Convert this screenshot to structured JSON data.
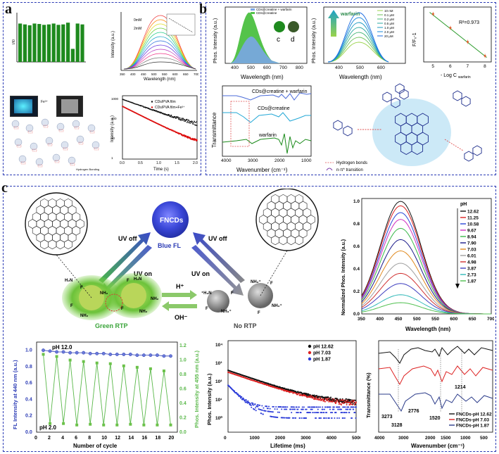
{
  "panels": {
    "a": "a",
    "b": "b",
    "c": "c"
  },
  "a": {
    "inset_fe": "Fe³⁺",
    "hbond": "Hydrogen Bonding",
    "spectra": {
      "ylabel": "Intensity (a.u.)",
      "xlabel": "Wavelength (nm)",
      "legend_top": "0mM",
      "legend_bot": "2mM",
      "xticks": [
        "350",
        "400",
        "450",
        "500",
        "550",
        "600",
        "650",
        "700"
      ]
    },
    "decay": {
      "ylabel": "Intensity (a.u.)",
      "xlabel": "Time (s)",
      "legend1": "CDs/PVA film",
      "legend2": "CDs/PVA film+Fe³⁺",
      "xticks": [
        "0.0",
        "0.5",
        "1.0",
        "1.5",
        "2.0"
      ],
      "yticks": [
        "1000",
        "100",
        "10",
        "1"
      ]
    }
  },
  "b": {
    "spec1": {
      "ylabel": "Phos. Intensity (a.u.)",
      "xlabel": "Wavelength (nm)",
      "leg1": "CDs@creatine + warfarin",
      "leg2": "CDs@creatine",
      "xticks": [
        "400",
        "500",
        "600",
        "700",
        "800"
      ],
      "c": "c",
      "d": "d"
    },
    "spec2": {
      "ylabel": "Phos. Intensity (a.u.)",
      "xlabel": "Wavelength (nm)",
      "arrow": "warfarin",
      "legend": [
        "10  nM",
        "0.1 μM",
        "0.2 μM",
        "0.5 μM",
        "1.0 μM",
        "2.0 μM",
        "20  μM"
      ],
      "xticks": [
        "400",
        "500",
        "600"
      ]
    },
    "fit": {
      "ylabel": "F/F₀-1",
      "xlabel": "- Log C",
      "xsub": "warfarin",
      "r2": "R²=0.973",
      "xticks": [
        "5",
        "6",
        "7",
        "8"
      ]
    },
    "ir": {
      "ylabel": "Transmittance",
      "xlabel": "Wavenumber (cm⁻¹)",
      "l1": "CDs@creatine + warfarin",
      "l2": "CDs@creatine",
      "l3": "warfarin",
      "xticks": [
        "4000",
        "3000",
        "2000",
        "1000"
      ]
    },
    "mol": {
      "hbonds": "Hydrogen bonds",
      "transition": "n-π* transition"
    }
  },
  "c": {
    "fncds": "FNCDs",
    "blue_fl": "Blue FL",
    "uv_off": "UV off",
    "uv_on": "UV on",
    "green_rtp": "Green RTP",
    "no_rtp": "No RTP",
    "h": "H⁺",
    "oh": "OH⁻",
    "norm": {
      "ylabel": "Normalized Phos. Intensity (a.u.)",
      "xlabel": "Wavelength (nm)",
      "ph": "pH",
      "legend": [
        "12.62",
        "11.25",
        "10.58",
        "9.67",
        "8.94",
        "7.90",
        "7.03",
        "6.01",
        "4.98",
        "3.87",
        "2.73",
        "1.87"
      ],
      "xticks": [
        "350",
        "400",
        "450",
        "500",
        "550",
        "600",
        "650",
        "700"
      ],
      "yticks": [
        "0.0",
        "0.2",
        "0.4",
        "0.6",
        "0.8",
        "1.0"
      ]
    },
    "cycle": {
      "ylabel_left": "FL Intensity at 440 nm (a.u.)",
      "ylabel_right": "Phos. Intensity at 455 nm (a.u.)",
      "xlabel": "Number of cycle",
      "ph_hi": "pH 12.0",
      "ph_lo": "pH 2.0",
      "xticks": [
        "0",
        "2",
        "4",
        "6",
        "8",
        "10",
        "12",
        "14",
        "16",
        "18",
        "20"
      ],
      "yticks": [
        "0.0",
        "0.2",
        "0.4",
        "0.6",
        "0.8",
        "1.0"
      ],
      "yticks_r": [
        "0.0",
        "0.2",
        "0.4",
        "0.6",
        "0.8",
        "1.0",
        "1.2"
      ]
    },
    "life": {
      "ylabel": "Phos. Intensity (a.u.)",
      "xlabel": "Lifetime (ms)",
      "legend": [
        "pH 12.62",
        "pH 7.03",
        "pH 1.87"
      ],
      "xticks": [
        "0",
        "1000",
        "2000",
        "3000",
        "4000",
        "5000"
      ],
      "yticks": [
        "10⁴",
        "10³",
        "10²",
        "10¹",
        "10⁰"
      ]
    },
    "ftir": {
      "ylabel": "Transmittance (%)",
      "xlabel": "Wavenumber (cm⁻¹)",
      "legend": [
        "FNCDs-pH 12.62",
        "FNCDs-pH 7.03",
        "FNCDs-pH 1.87"
      ],
      "peaks": [
        "3273",
        "3128",
        "2776",
        "1520",
        "1214"
      ],
      "xticks": [
        "4000",
        "3000",
        "2000",
        "1500",
        "1000",
        "500"
      ]
    }
  },
  "chart_data": [
    {
      "type": "bar",
      "title": "",
      "ylabel": "I/I0",
      "values": [
        0.88,
        0.86,
        0.84,
        0.88,
        0.87,
        0.85,
        0.86,
        0.88,
        0.85,
        0.86,
        0.9,
        0.3,
        0.88,
        0.86
      ]
    },
    {
      "type": "line",
      "title": "",
      "xlabel": "Time (s)",
      "ylabel": "Intensity (a.u.)",
      "x": [
        0.0,
        2.0
      ],
      "series": [
        {
          "name": "CDs/PVA film",
          "values": [
            900,
            30
          ]
        },
        {
          "name": "CDs/PVA film+Fe³⁺",
          "values": [
            400,
            1.5
          ]
        }
      ]
    },
    {
      "type": "line",
      "xlabel": "- Log C warfarin",
      "ylabel": "F/F0-1",
      "x": [
        5,
        6,
        7,
        8
      ],
      "values": [
        2.75,
        1.9,
        1.05,
        0.2
      ],
      "annotation": "R²=0.973"
    },
    {
      "type": "line",
      "xlabel": "Wavelength (nm)",
      "ylabel": "Normalized Phos. Intensity (a.u.)",
      "ylim": [
        0,
        1.0
      ],
      "categories": [
        "12.62",
        "11.25",
        "10.58",
        "9.67",
        "8.94",
        "7.90",
        "7.03",
        "6.01",
        "4.98",
        "3.87",
        "2.73",
        "1.87"
      ],
      "peak_values": [
        1.0,
        0.96,
        0.9,
        0.84,
        0.76,
        0.66,
        0.56,
        0.45,
        0.36,
        0.27,
        0.17,
        0.1
      ]
    },
    {
      "type": "line",
      "xlabel": "Number of cycle",
      "ylabel": "FL Intensity at 440 nm (a.u.)",
      "x": [
        1,
        2,
        3,
        4,
        5,
        6,
        7,
        8,
        9,
        10,
        11,
        12,
        13,
        14,
        15,
        16,
        17,
        18,
        19,
        20
      ],
      "series": [
        {
          "name": "FL",
          "values": [
            1.0,
            0.99,
            0.98,
            0.98,
            0.97,
            0.97,
            0.97,
            0.96,
            0.96,
            0.96,
            0.95,
            0.95,
            0.95,
            0.95,
            0.94,
            0.94,
            0.94,
            0.94,
            0.93,
            0.93
          ]
        },
        {
          "name": "Phos",
          "values": [
            1.08,
            0.12,
            1.05,
            0.12,
            1.0,
            0.1,
            0.98,
            0.11,
            0.96,
            0.1,
            0.95,
            0.1,
            0.92,
            0.11,
            0.9,
            0.1,
            0.88,
            0.1,
            0.85,
            0.1
          ]
        }
      ]
    },
    {
      "type": "scatter",
      "xlabel": "Lifetime (ms)",
      "ylabel": "Phos. Intensity (a.u.)",
      "series": [
        {
          "name": "pH 12.62"
        },
        {
          "name": "pH 7.03"
        },
        {
          "name": "pH 1.87"
        }
      ]
    }
  ]
}
